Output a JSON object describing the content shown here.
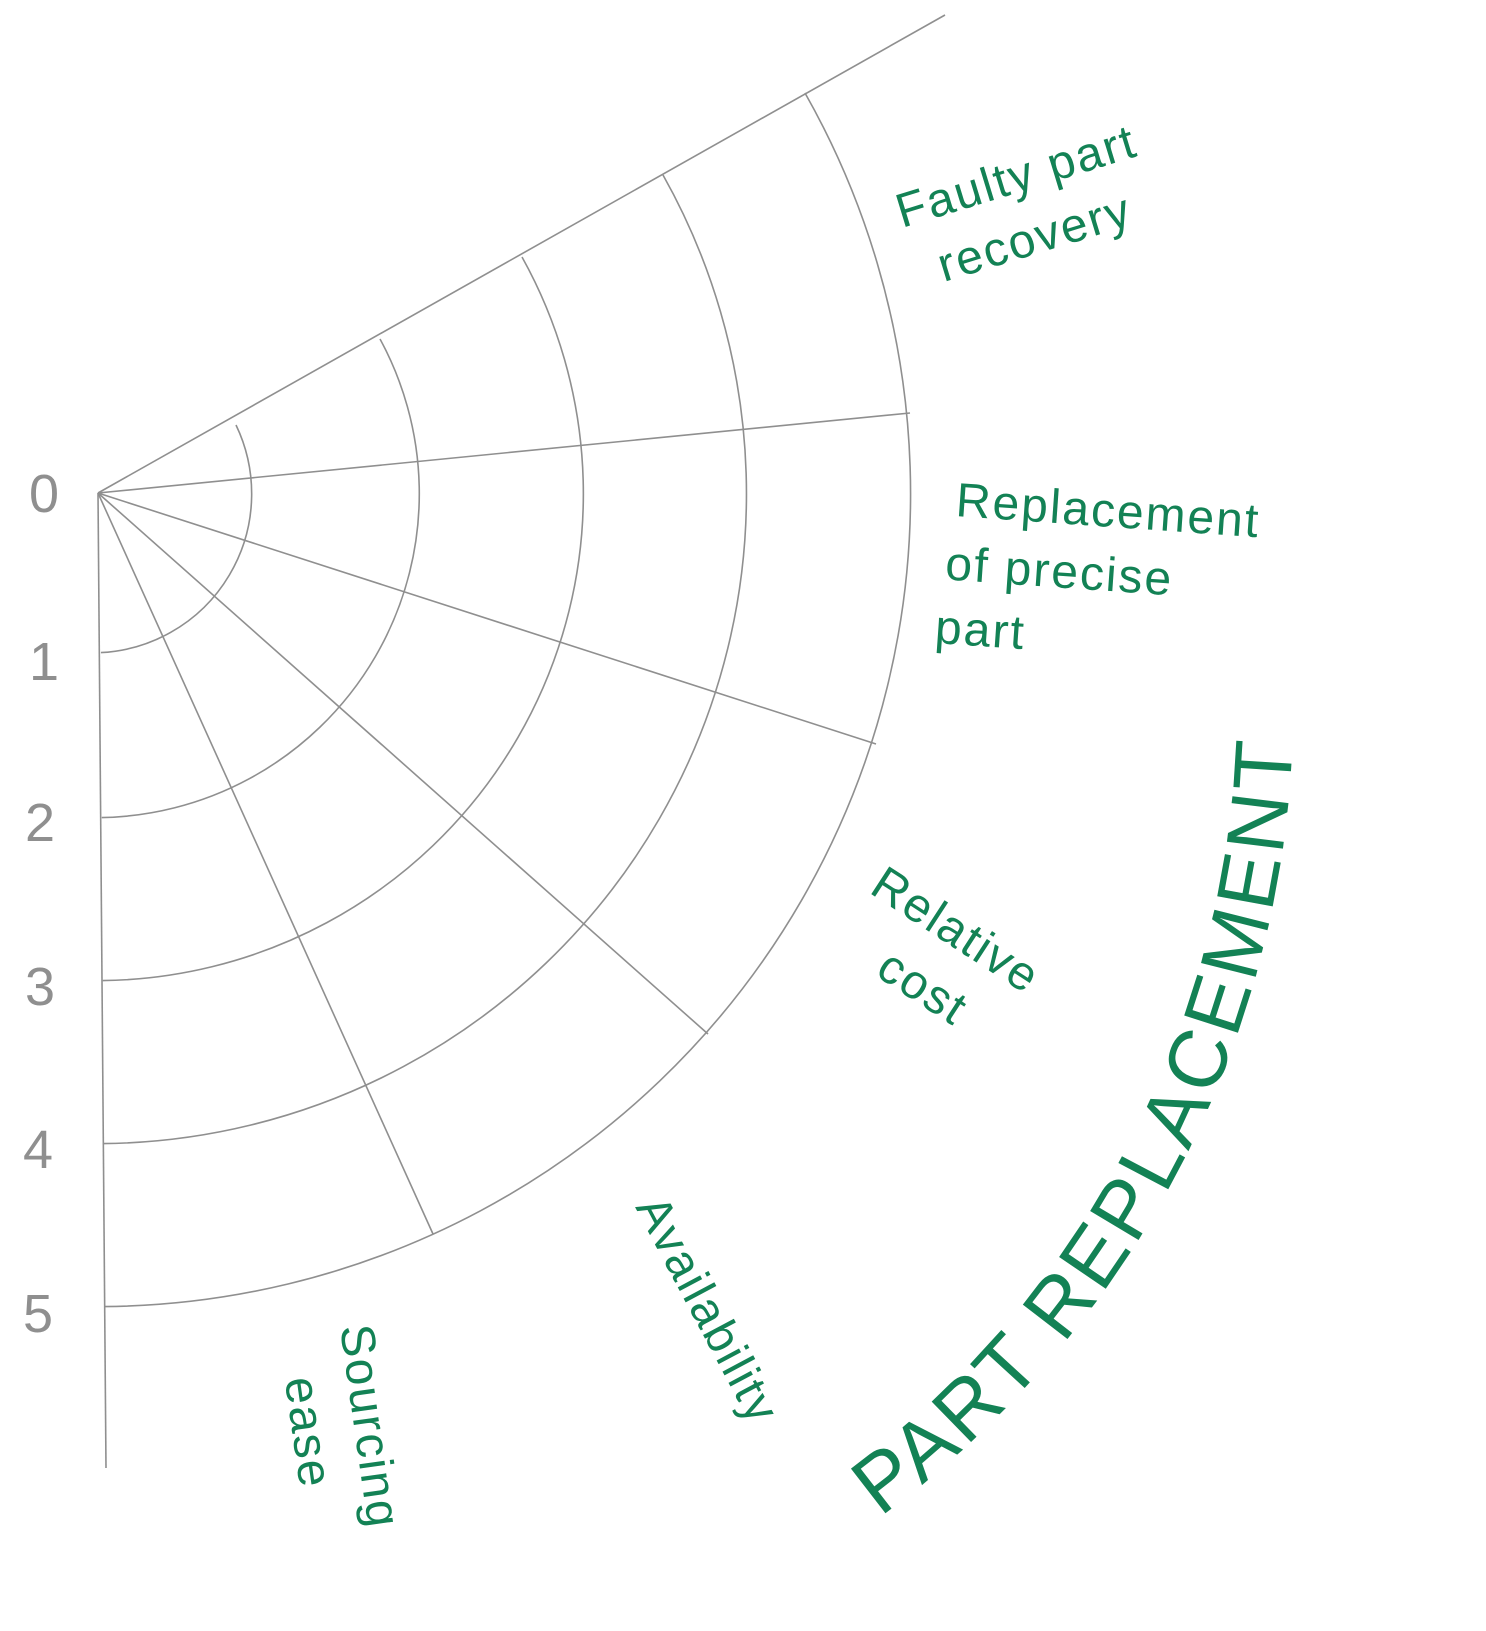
{
  "diagram": {
    "title": "PART REPLACEMENT",
    "scale_labels": [
      "0",
      "1",
      "2",
      "3",
      "4",
      "5"
    ],
    "categories": [
      {
        "label_lines": [
          "Faulty part",
          "recovery"
        ]
      },
      {
        "label_lines": [
          "Replacement",
          "of precise",
          "part"
        ]
      },
      {
        "label_lines": [
          "Relative",
          "cost"
        ]
      },
      {
        "label_lines": [
          "Availability"
        ]
      },
      {
        "label_lines": [
          "Sourcing",
          "ease"
        ]
      }
    ],
    "colors": {
      "grid": "#8f8f8f",
      "labels": "#138255"
    }
  }
}
